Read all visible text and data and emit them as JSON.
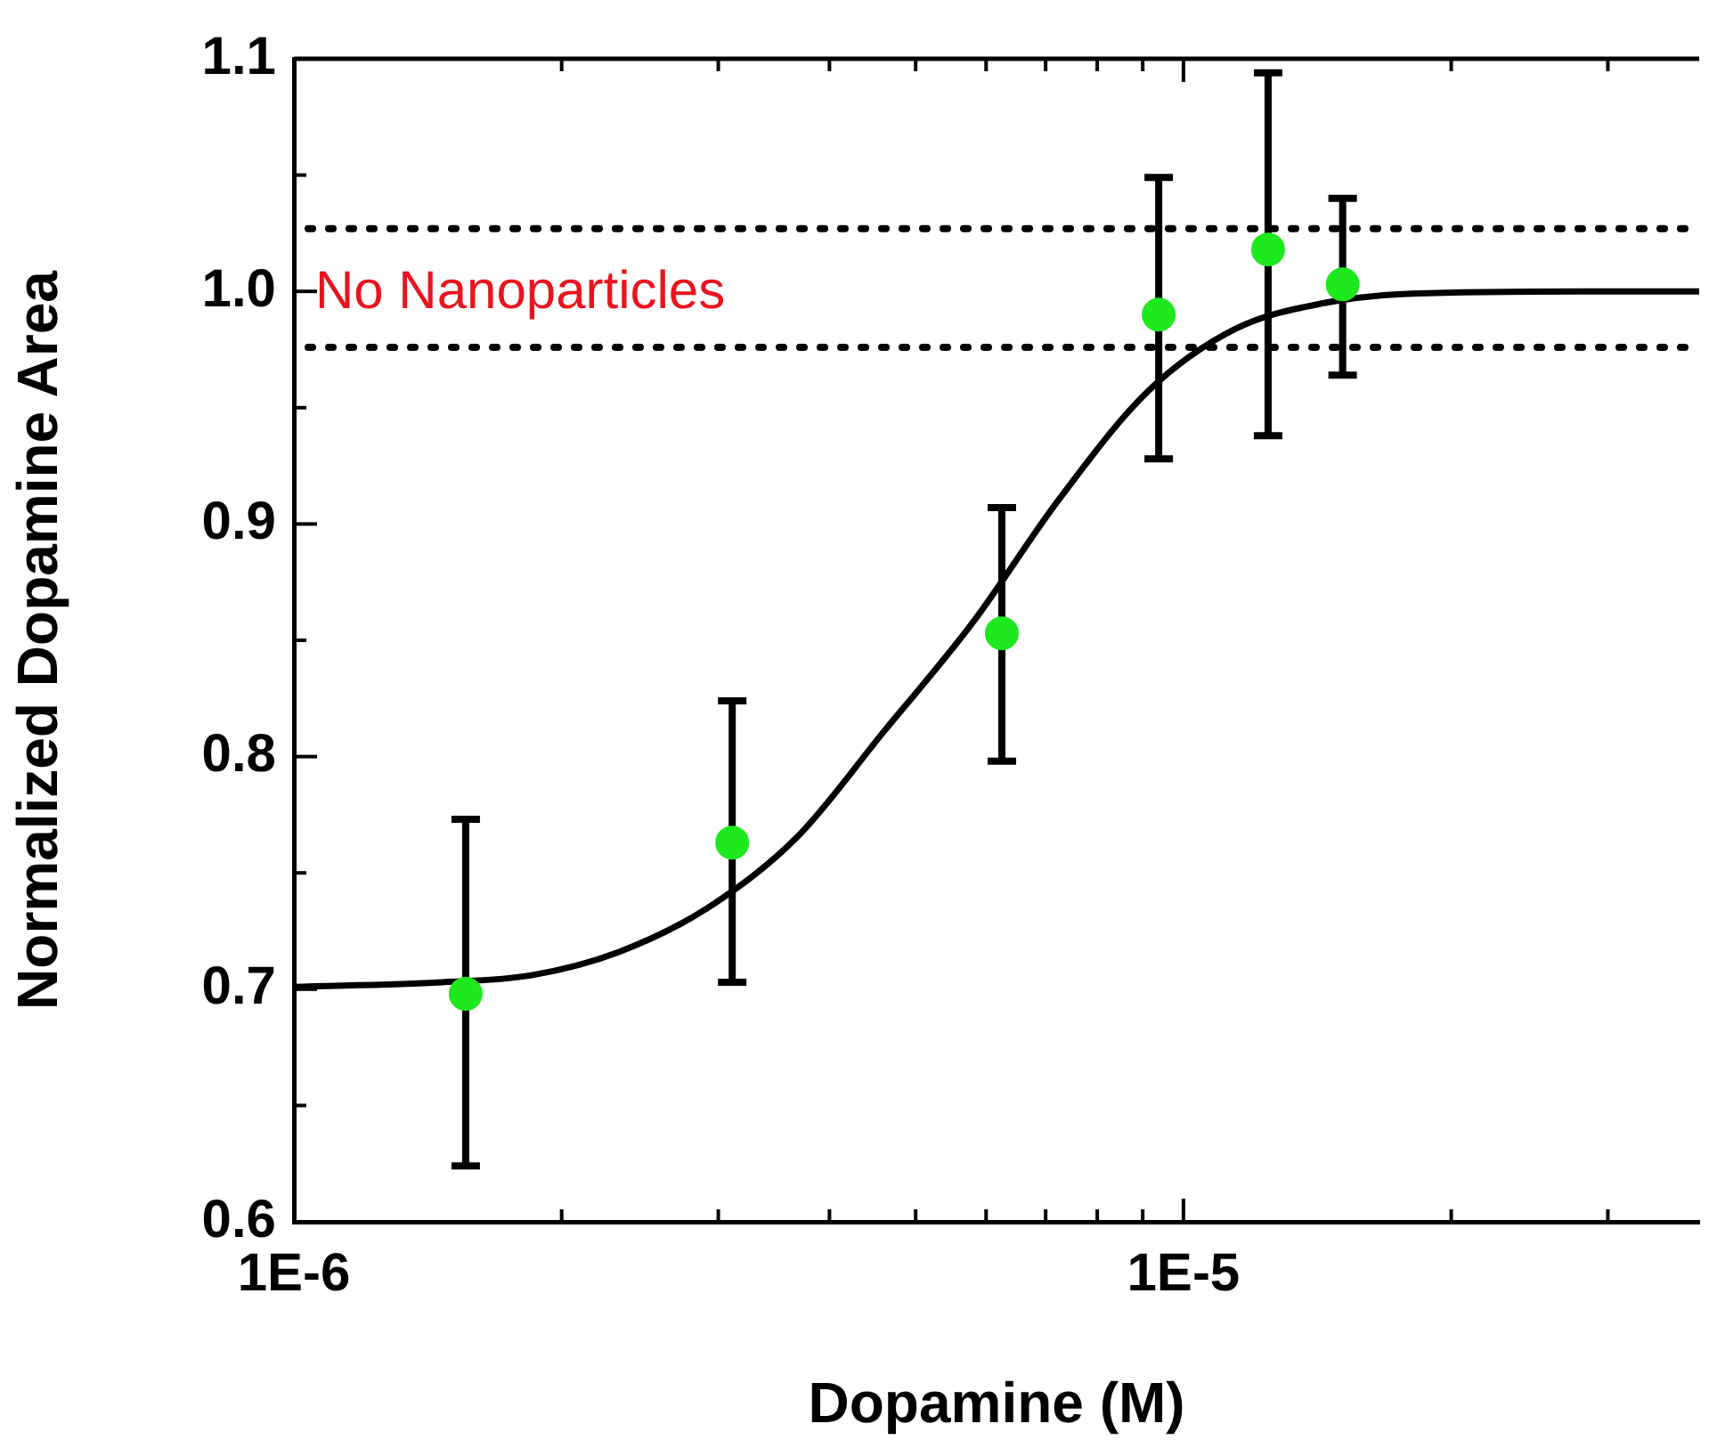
{
  "chart_data": {
    "type": "scatter",
    "xlabel": "Dopamine (M)",
    "ylabel": "Normalized Dopamine Area",
    "log": "x",
    "grid": false,
    "marker": "circle",
    "legend": false,
    "xlim": [
      1e-06,
      3.8e-05
    ],
    "xticks": [
      {
        "value": 1e-06,
        "label": "1E-6"
      },
      {
        "value": 2e-06,
        "label": null
      },
      {
        "value": 3e-06,
        "label": null
      },
      {
        "value": 4e-06,
        "label": null
      },
      {
        "value": 5e-06,
        "label": null
      },
      {
        "value": 6e-06,
        "label": null
      },
      {
        "value": 7e-06,
        "label": null
      },
      {
        "value": 8e-06,
        "label": null
      },
      {
        "value": 9e-06,
        "label": null
      },
      {
        "value": 1e-05,
        "label": "1E-5"
      },
      {
        "value": 2e-05,
        "label": null
      },
      {
        "value": 3e-05,
        "label": null
      }
    ],
    "ylim": [
      0.6,
      1.1
    ],
    "yticks": [
      0.6,
      {
        "value": 0.65,
        "label": null
      },
      0.7,
      {
        "value": 0.75,
        "label": null
      },
      0.8,
      {
        "value": 0.85,
        "label": null
      },
      0.9,
      {
        "value": 0.95,
        "label": null
      },
      {
        "value": 1.0,
        "label": "1.0"
      },
      {
        "value": 1.05,
        "label": null
      },
      1.1
    ],
    "ref_lines": [
      {
        "axis": "y",
        "value": 1.027,
        "line_style": "dotted",
        "color": "#000000"
      },
      {
        "axis": "y",
        "value": 0.976,
        "line_style": "dotted",
        "color": "#000000"
      }
    ],
    "annotations": [
      "No Nanoparticles"
    ],
    "series": [
      {
        "type": "line",
        "marker": "none",
        "color": "#000000",
        "x": [
          1e-06,
          1.47e-06,
          1.85e-06,
          2.32e-06,
          2.92e-06,
          3.67e-06,
          4.61e-06,
          5.78e-06,
          7.26e-06,
          9.12e-06,
          1.146e-05,
          1.44e-05,
          1.81e-05,
          2.85e-05,
          3.8e-05
        ],
        "values": [
          0.701,
          0.703,
          0.706,
          0.716,
          0.735,
          0.765,
          0.811,
          0.857,
          0.911,
          0.957,
          0.984,
          0.995,
          0.999,
          1.0,
          1.0
        ]
      },
      {
        "color": "#1ee81e",
        "x": [
          1.56e-06,
          3.11e-06,
          6.25e-06,
          9.38e-06,
          1.245e-05,
          1.51e-05
        ],
        "values": [
          0.698,
          0.763,
          0.853,
          0.99,
          1.018,
          1.003
        ],
        "errors": [
          [
            0.624,
            0.773
          ],
          [
            0.703,
            0.824
          ],
          [
            0.798,
            0.907
          ],
          [
            0.928,
            1.049
          ],
          [
            0.938,
            1.094
          ],
          [
            0.964,
            1.04
          ]
        ]
      }
    ]
  }
}
